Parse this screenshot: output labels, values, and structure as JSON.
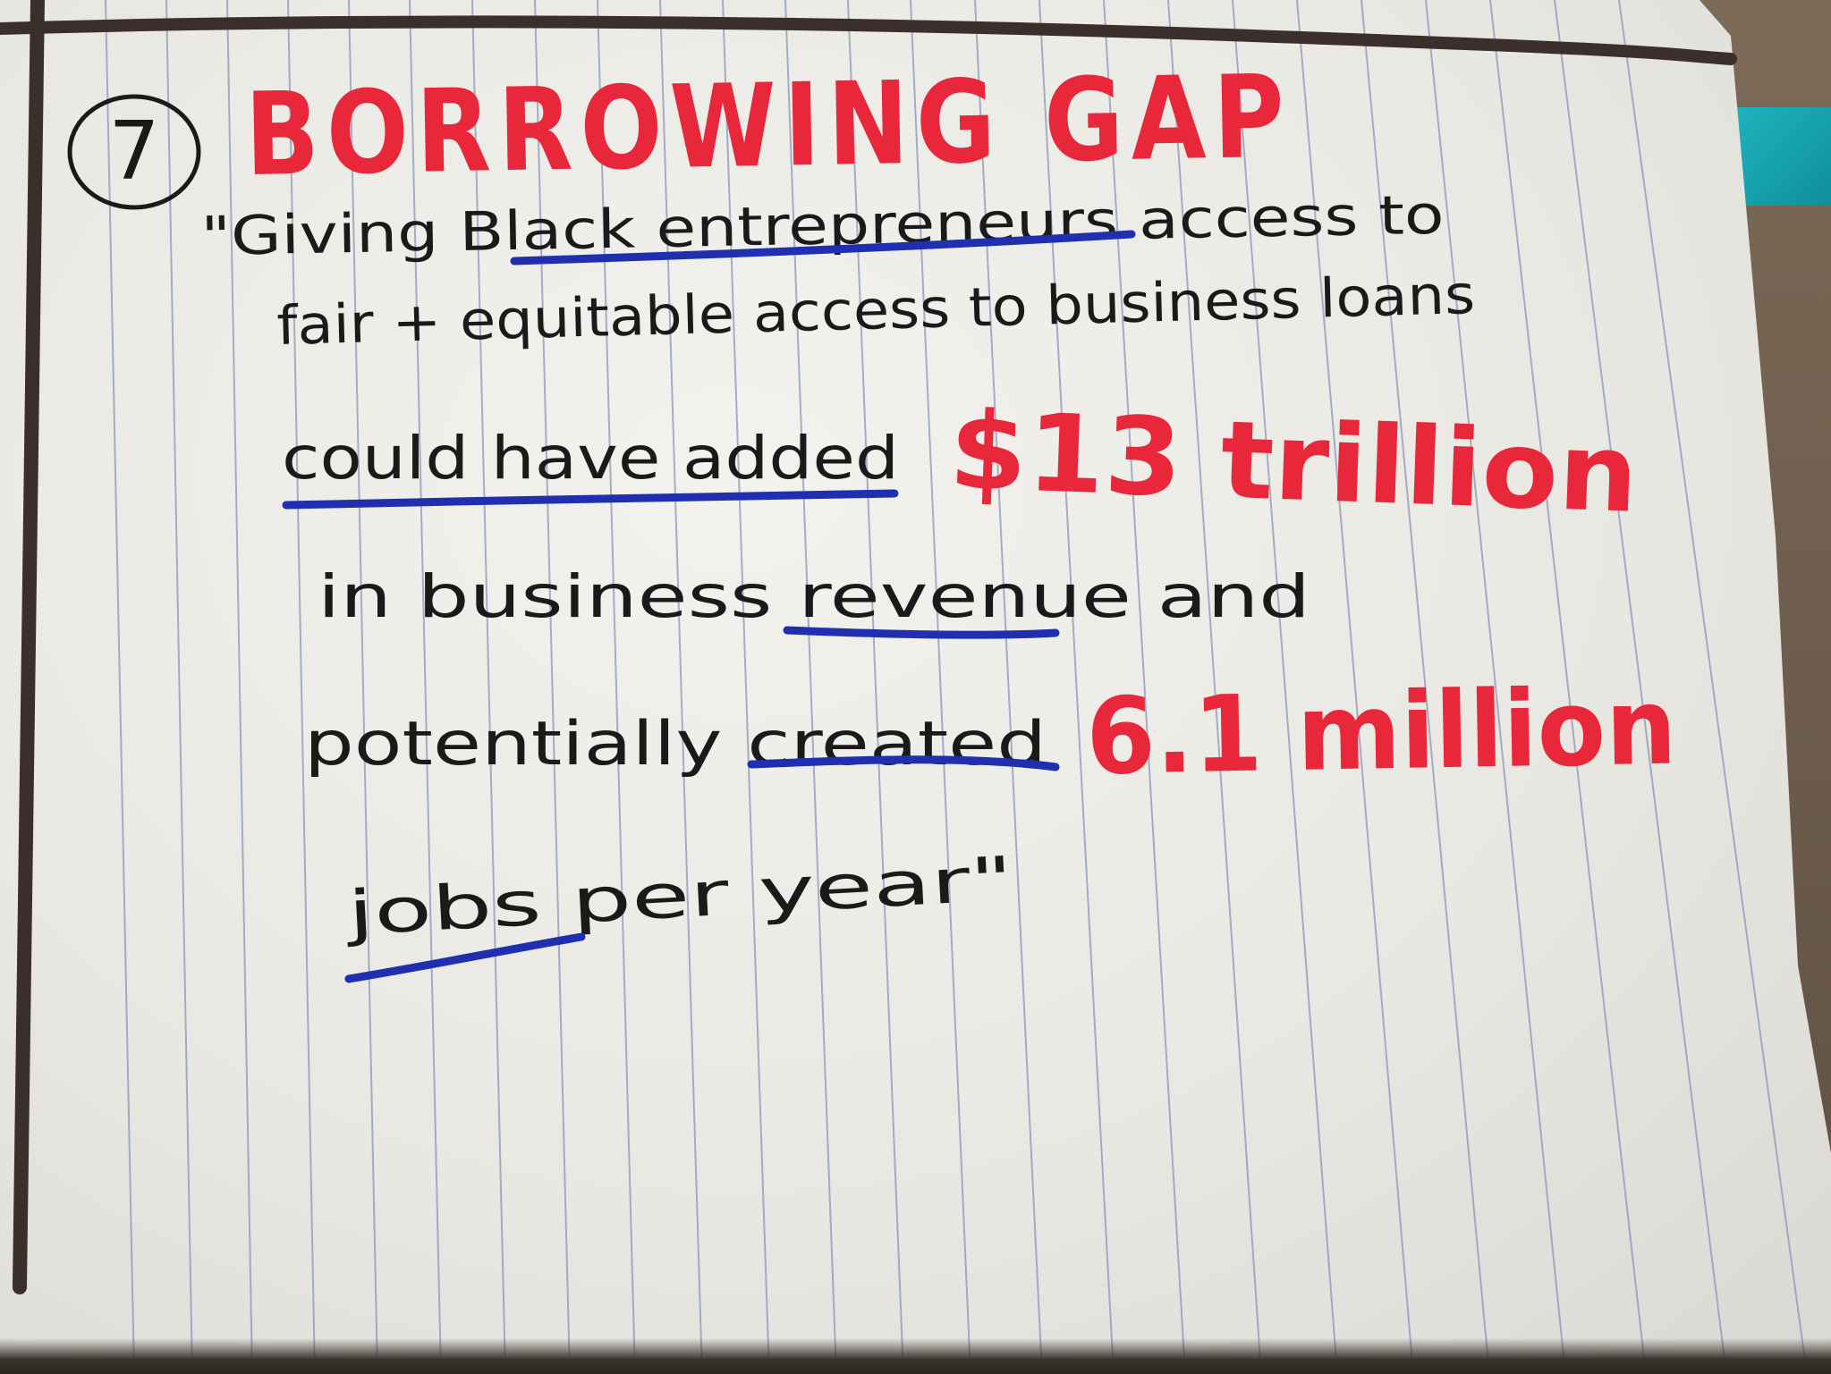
{
  "note": {
    "number": "7",
    "title": "BORROWING GAP",
    "lines": [
      "\"Giving Black entrepreneurs access to",
      "fair + equitable access to business loans",
      "could have added",
      "in business revenue and",
      "potentially created",
      "jobs per year\""
    ],
    "highlights": {
      "revenue_amount": "$13 trillion",
      "jobs_amount": "6.1 million"
    }
  },
  "colors": {
    "red_ink": "#e8283a",
    "blue_ink": "#1f2fb0",
    "black_ink": "#1a1a1a",
    "rule_line": "#8a97b8",
    "margin_line": "#3a2f2b"
  }
}
